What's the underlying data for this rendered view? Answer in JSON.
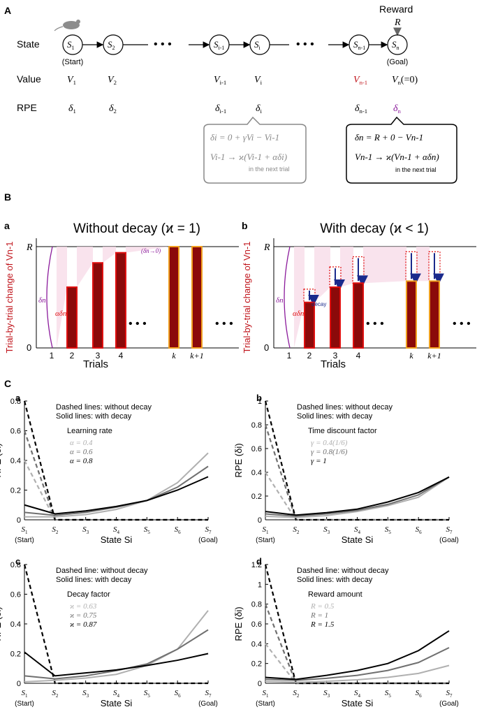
{
  "panels": {
    "A": "A",
    "B": "B",
    "C": "C"
  },
  "panel_a": {
    "reward_label": "Reward",
    "reward_symbol": "R",
    "row_labels": {
      "state": "State",
      "value": "Value",
      "rpe": "RPE"
    },
    "ellipsis": "• • •",
    "states": [
      {
        "key": "s1",
        "sym": "S",
        "sub": "1",
        "note": "(Start)",
        "value": "V",
        "value_sub": "1",
        "rpe": "δ",
        "rpe_sub": "1"
      },
      {
        "key": "s2",
        "sym": "S",
        "sub": "2",
        "note": "",
        "value": "V",
        "value_sub": "2",
        "rpe": "δ",
        "rpe_sub": "2"
      },
      {
        "key": "si1",
        "sym": "S",
        "sub": "i-1",
        "note": "",
        "value": "V",
        "value_sub": "i-1",
        "rpe": "δ",
        "rpe_sub": "i-1"
      },
      {
        "key": "si",
        "sym": "S",
        "sub": "i",
        "note": "",
        "value": "V",
        "value_sub": "i",
        "rpe": "δ",
        "rpe_sub": "i"
      },
      {
        "key": "sn1",
        "sym": "S",
        "sub": "n-1",
        "note": "",
        "value": "V",
        "value_sub": "n-1",
        "rpe": "δ",
        "rpe_sub": "n-1"
      },
      {
        "key": "sn",
        "sym": "S",
        "sub": "n",
        "note": "(Goal)",
        "value": "V",
        "value_sub": "n",
        "value_suffix": "(=0)",
        "rpe": "δ",
        "rpe_sub": "n"
      }
    ],
    "box_gray": {
      "eq1": "δi = 0 + γVi − Vi-1",
      "eq2": "Vi-1 → ϰ(Vi-1 + αδi)",
      "note": "in the next trial"
    },
    "box_black": {
      "eq1": "δn = R + 0 − Vn-1",
      "eq2": "Vn-1 → ϰ(Vn-1 + αδn)",
      "note": "in the next trial"
    }
  },
  "panel_b": {
    "ylabel": "Trial-by-trial change of Vn-1",
    "xlabel": "Trials",
    "y_top": "R",
    "y_zero": "0",
    "sub_a": {
      "letter": "a",
      "title": "Without decay (ϰ = 1)",
      "ticks": [
        "1",
        "2",
        "3",
        "4",
        "k",
        "k+1"
      ],
      "delta_zero": "(δn→0)"
    },
    "sub_b": {
      "letter": "b",
      "title": "With decay (ϰ < 1)",
      "ticks": [
        "1",
        "2",
        "3",
        "4",
        "k",
        "k+1"
      ],
      "decay_label": "decay"
    },
    "labels": {
      "delta_n": "δn",
      "alpha_delta": "αδn"
    },
    "bar_values_without_decay": [
      0.0,
      0.6,
      0.84,
      0.94,
      1.0,
      1.0
    ],
    "bar_values_with_decay": [
      0.0,
      0.45,
      0.6,
      0.64,
      0.66,
      0.66
    ],
    "bar_prev_values_with_decay": [
      0.0,
      0.58,
      0.8,
      0.9,
      0.95,
      0.95
    ]
  },
  "chart_data": [
    {
      "id": "Ca",
      "letter": "a",
      "type": "line",
      "title": "",
      "legend_head": [
        "Dashed lines: without decay",
        "Solid lines: with decay"
      ],
      "legend_title": "Learning rate",
      "xlabel": "State Si",
      "ylabel": "RPE (δi)",
      "categories": [
        "S1",
        "S2",
        "S3",
        "S4",
        "S5",
        "S6",
        "S7"
      ],
      "xnotes": [
        "(Start)",
        "(Goal)"
      ],
      "ylim": [
        0,
        0.8
      ],
      "yticks": [
        "0",
        "0.2",
        "0.4",
        "0.6",
        "0.8"
      ],
      "series": [
        {
          "name": "α = 0.4",
          "color": "#b0b0b0",
          "solid": [
            0.02,
            0.02,
            0.035,
            0.07,
            0.13,
            0.25,
            0.45
          ],
          "dashed": [
            0.4,
            0,
            0,
            0,
            0,
            0,
            0
          ]
        },
        {
          "name": "α = 0.6",
          "color": "#707070",
          "solid": [
            0.05,
            0.03,
            0.05,
            0.085,
            0.13,
            0.22,
            0.36
          ],
          "dashed": [
            0.6,
            0,
            0,
            0,
            0,
            0,
            0
          ]
        },
        {
          "name": "α = 0.8",
          "color": "#000000",
          "solid": [
            0.1,
            0.04,
            0.06,
            0.09,
            0.13,
            0.2,
            0.29
          ],
          "dashed": [
            0.8,
            0,
            0,
            0,
            0,
            0,
            0
          ]
        }
      ]
    },
    {
      "id": "Cb",
      "letter": "b",
      "type": "line",
      "title": "",
      "legend_head": [
        "Dashed lines: without decay",
        "Solid lines: with decay"
      ],
      "legend_title": "Time discount factor",
      "xlabel": "State Si",
      "ylabel": "RPE (δi)",
      "categories": [
        "S1",
        "S2",
        "S3",
        "S4",
        "S5",
        "S6",
        "S7"
      ],
      "xnotes": [
        "(Start)",
        "(Goal)"
      ],
      "ylim": [
        0,
        1.0
      ],
      "yticks": [
        "0",
        "0.2",
        "0.4",
        "0.6",
        "0.8",
        "1"
      ],
      "series": [
        {
          "name": "γ = 0.4(1/6)",
          "color": "#b0b0b0",
          "solid": [
            0.03,
            0.02,
            0.035,
            0.07,
            0.12,
            0.19,
            0.36
          ],
          "dashed": [
            0.4,
            0,
            0,
            0,
            0,
            0,
            0
          ]
        },
        {
          "name": "γ = 0.8(1/6)",
          "color": "#707070",
          "solid": [
            0.05,
            0.03,
            0.05,
            0.08,
            0.13,
            0.21,
            0.36
          ],
          "dashed": [
            0.8,
            0,
            0,
            0,
            0,
            0,
            0
          ]
        },
        {
          "name": "γ = 1",
          "color": "#000000",
          "solid": [
            0.07,
            0.04,
            0.06,
            0.09,
            0.15,
            0.23,
            0.36
          ],
          "dashed": [
            1.0,
            0,
            0,
            0,
            0,
            0,
            0
          ]
        }
      ]
    },
    {
      "id": "Cc",
      "letter": "c",
      "type": "line",
      "title": "",
      "legend_head": [
        "Dashed line: without decay",
        "Solid lines: with decay"
      ],
      "legend_title": "Decay factor",
      "xlabel": "State Si",
      "ylabel": "RPE (δi)",
      "categories": [
        "S1",
        "S2",
        "S3",
        "S4",
        "S5",
        "S6",
        "S7"
      ],
      "xnotes": [
        "(Start)",
        "(Goal)"
      ],
      "ylim": [
        0,
        0.8
      ],
      "yticks": [
        "0",
        "0.2",
        "0.4",
        "0.6",
        "0.8"
      ],
      "series": [
        {
          "name": "ϰ = 0.63",
          "color": "#b0b0b0",
          "solid": [
            0.01,
            0.02,
            0.035,
            0.06,
            0.12,
            0.23,
            0.49
          ],
          "dashed": null
        },
        {
          "name": "ϰ = 0.75",
          "color": "#707070",
          "solid": [
            0.05,
            0.03,
            0.05,
            0.085,
            0.13,
            0.23,
            0.36
          ],
          "dashed": null
        },
        {
          "name": "ϰ = 0.87",
          "color": "#000000",
          "solid": [
            0.21,
            0.05,
            0.07,
            0.09,
            0.12,
            0.155,
            0.2
          ],
          "dashed": [
            0.8,
            0,
            0,
            0,
            0,
            0,
            0
          ]
        }
      ]
    },
    {
      "id": "Cd",
      "letter": "d",
      "type": "line",
      "title": "",
      "legend_head": [
        "Dashed line: without decay",
        "Solid lines: with decay"
      ],
      "legend_title": "Reward amount",
      "xlabel": "State Si",
      "ylabel": "RPE (δi)",
      "categories": [
        "S1",
        "S2",
        "S3",
        "S4",
        "S5",
        "S6",
        "S7"
      ],
      "xnotes": [
        "(Start)",
        "(Goal)"
      ],
      "ylim": [
        0,
        1.2
      ],
      "yticks": [
        "0",
        "0.2",
        "0.4",
        "0.6",
        "0.8",
        "1",
        "1.2"
      ],
      "series": [
        {
          "name": "R = 0.5",
          "color": "#b0b0b0",
          "solid": [
            0.02,
            0.01,
            0.02,
            0.035,
            0.06,
            0.1,
            0.18
          ],
          "dashed": [
            0.4,
            0,
            0,
            0,
            0,
            0,
            0
          ]
        },
        {
          "name": "R = 1",
          "color": "#707070",
          "solid": [
            0.04,
            0.03,
            0.05,
            0.08,
            0.13,
            0.21,
            0.36
          ],
          "dashed": [
            0.8,
            0,
            0,
            0,
            0,
            0,
            0
          ]
        },
        {
          "name": "R = 1.5",
          "color": "#000000",
          "solid": [
            0.06,
            0.04,
            0.08,
            0.13,
            0.2,
            0.33,
            0.53
          ],
          "dashed": [
            1.2,
            0,
            0,
            0,
            0,
            0,
            0
          ]
        }
      ]
    }
  ],
  "colors": {
    "value_red": "#c0141b",
    "rpe_purple": "#8b1a9b",
    "bar_fill": "#8b0a0a",
    "bar_orange": "#f0a020",
    "bar_red": "#e01010",
    "decay_blue": "#1a2a8c",
    "pink": "#f8dce8"
  }
}
